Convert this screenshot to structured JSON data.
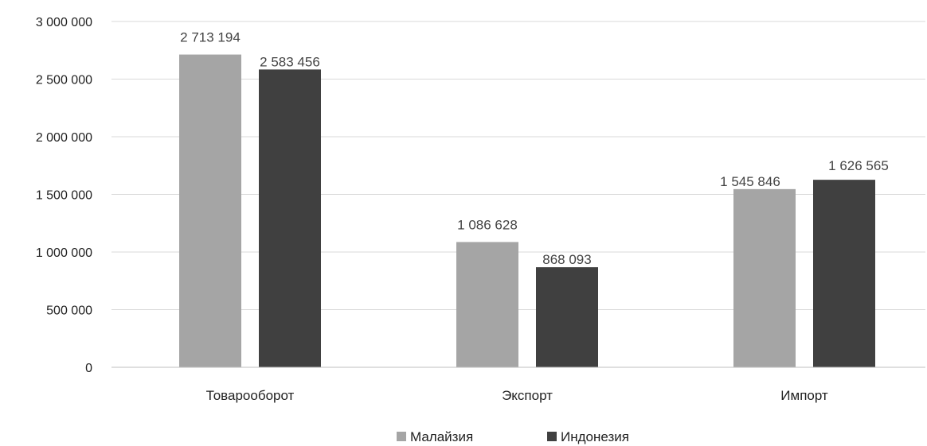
{
  "chart_data": {
    "type": "bar",
    "categories": [
      "Товарооборот",
      "Экспорт",
      "Импорт"
    ],
    "series": [
      {
        "name": "Малайзия",
        "values": [
          2713194,
          1086628,
          1545846
        ],
        "color": "#a5a5a5"
      },
      {
        "name": "Индонезия",
        "values": [
          2583456,
          868093,
          1626565
        ],
        "color": "#404040"
      }
    ],
    "data_labels": [
      [
        "2 713 194",
        "1 086 628",
        "1 545 846"
      ],
      [
        "2 583 456",
        "868 093",
        "1 626 565"
      ]
    ],
    "yticks": [
      0,
      500000,
      1000000,
      1500000,
      2000000,
      2500000,
      3000000
    ],
    "ytick_labels": [
      "0",
      "500 000",
      "1 000 000",
      "1 500 000",
      "2 000 000",
      "2 500 000",
      "3 000 000"
    ],
    "ylim": [
      0,
      3000000
    ],
    "grid": true,
    "gridline_color": "#d9d9d9",
    "legend_position": "bottom",
    "title": "",
    "xlabel": "",
    "ylabel": ""
  }
}
